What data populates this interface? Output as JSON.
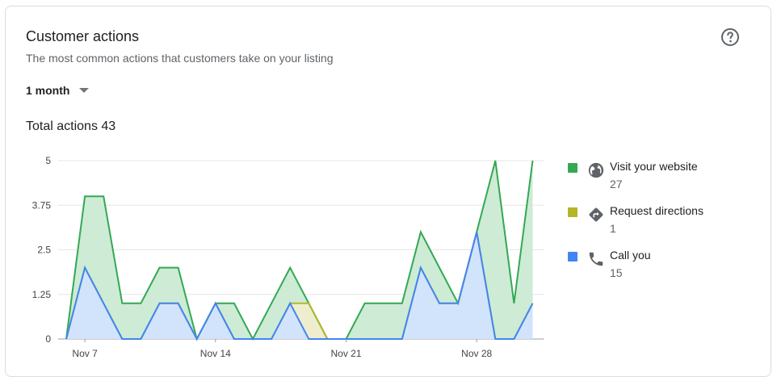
{
  "card": {
    "title": "Customer actions",
    "subtitle": "The most common actions that customers take on your listing",
    "help_icon": "help-circle-icon",
    "range_label": "1 month",
    "total_label": "Total actions 43"
  },
  "legend": [
    {
      "label": "Visit your website",
      "count": "27",
      "color": "#34a853",
      "icon": "globe-icon"
    },
    {
      "label": "Request directions",
      "count": "1",
      "color": "#b5b52a",
      "icon": "directions-icon"
    },
    {
      "label": "Call you",
      "count": "15",
      "color": "#4285f4",
      "icon": "phone-icon"
    }
  ],
  "chart_data": {
    "type": "area",
    "stacked": true,
    "x": [
      "Nov 6",
      "Nov 7",
      "Nov 8",
      "Nov 9",
      "Nov 10",
      "Nov 11",
      "Nov 12",
      "Nov 13",
      "Nov 14",
      "Nov 15",
      "Nov 16",
      "Nov 17",
      "Nov 18",
      "Nov 19",
      "Nov 20",
      "Nov 21",
      "Nov 22",
      "Nov 23",
      "Nov 24",
      "Nov 25",
      "Nov 26",
      "Nov 27",
      "Nov 28",
      "Nov 29",
      "Nov 30",
      "Dec 1"
    ],
    "x_tick_labels": [
      "Nov 7",
      "Nov 14",
      "Nov 21",
      "Nov 28"
    ],
    "y_ticks": [
      "0",
      "1.25",
      "2.5",
      "3.75",
      "5"
    ],
    "ylim": [
      0,
      5
    ],
    "grid": true,
    "series": [
      {
        "name": "Call you",
        "color": "#4285f4",
        "fill": "#d2e3fc",
        "values": [
          0,
          2,
          1,
          0,
          0,
          1,
          1,
          0,
          1,
          0,
          0,
          0,
          1,
          0,
          0,
          0,
          0,
          0,
          0,
          2,
          1,
          1,
          3,
          0,
          0,
          1
        ]
      },
      {
        "name": "Request directions",
        "color": "#b5b52a",
        "fill": "#eeeecf",
        "values": [
          0,
          0,
          0,
          0,
          0,
          0,
          0,
          0,
          0,
          0,
          0,
          0,
          0,
          1,
          0,
          0,
          0,
          0,
          0,
          0,
          0,
          0,
          0,
          0,
          0,
          0
        ]
      },
      {
        "name": "Visit your website",
        "color": "#34a853",
        "fill": "#cdebd5",
        "values": [
          0,
          2,
          3,
          1,
          1,
          1,
          1,
          0,
          0,
          1,
          0,
          1,
          1,
          0,
          0,
          0,
          1,
          1,
          1,
          1,
          1,
          0,
          0,
          5,
          1,
          4
        ]
      }
    ]
  }
}
